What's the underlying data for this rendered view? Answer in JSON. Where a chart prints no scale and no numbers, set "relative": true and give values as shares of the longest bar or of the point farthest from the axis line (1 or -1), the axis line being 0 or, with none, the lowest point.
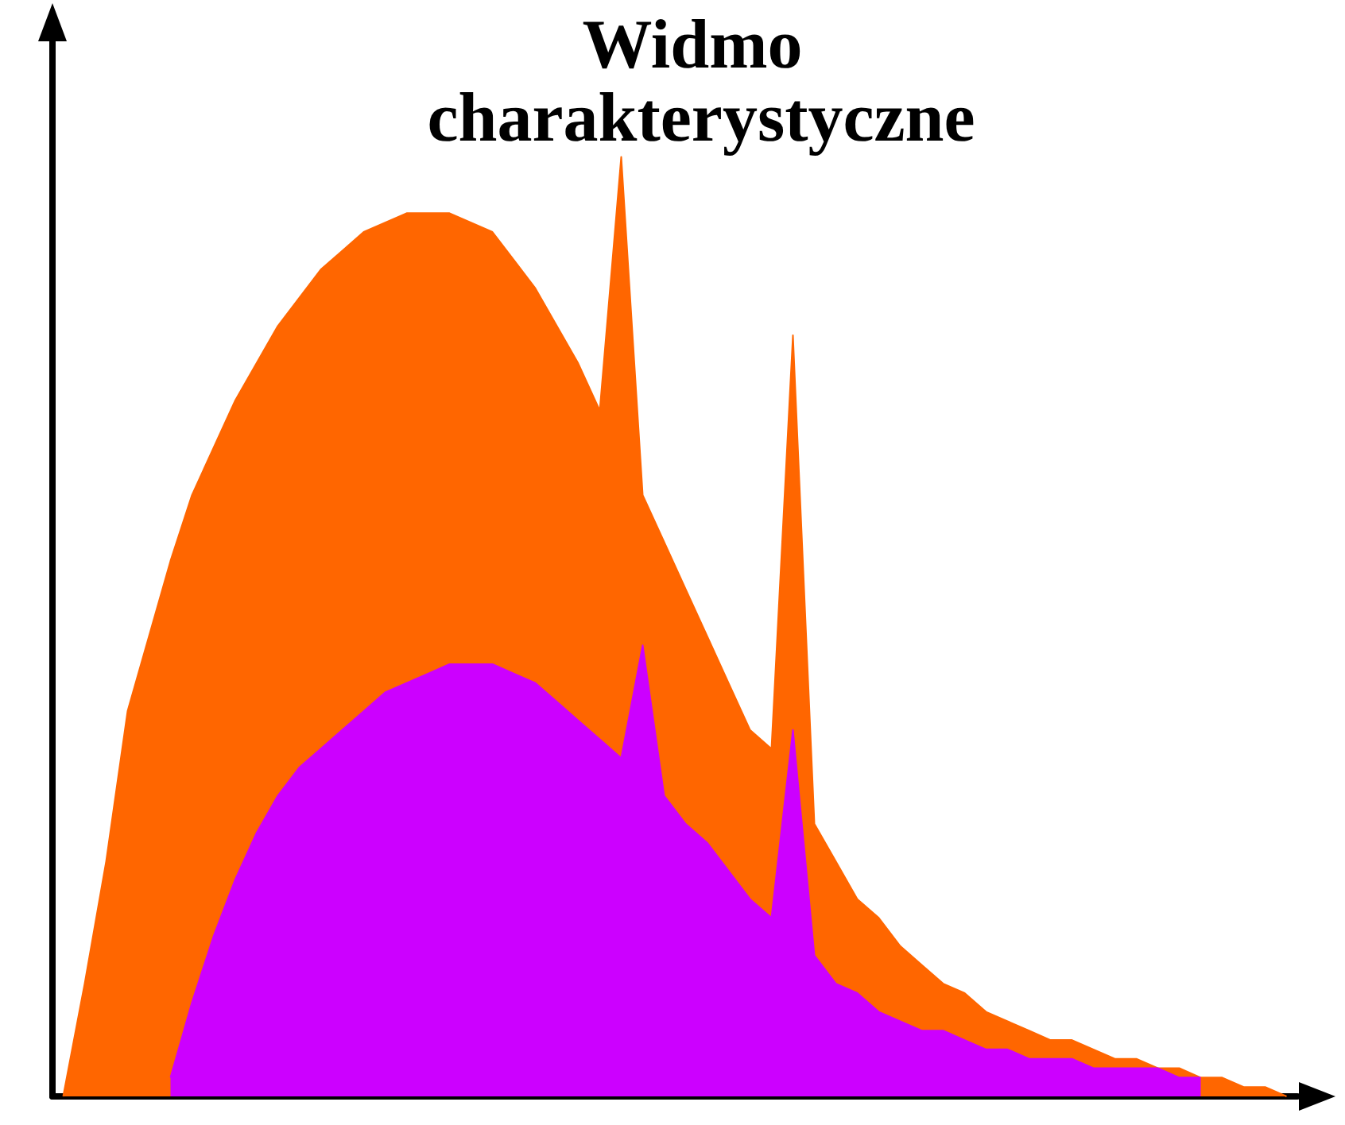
{
  "chart_data": {
    "type": "area",
    "title": "Widmo charakterystyczne",
    "relative": true,
    "grid": false,
    "categories": [
      null,
      null,
      null,
      null,
      null,
      null,
      null,
      null,
      null,
      null,
      null,
      null,
      null,
      null,
      null,
      null,
      null,
      null,
      null,
      null,
      null,
      null,
      null,
      null,
      null,
      null,
      null,
      null,
      null,
      null,
      null,
      null,
      null,
      null,
      null,
      null,
      null,
      null,
      null,
      null,
      null,
      null,
      null,
      null,
      null,
      null,
      null,
      null,
      null,
      null,
      null,
      null,
      null,
      null,
      null,
      null,
      null,
      null
    ],
    "series": [
      {
        "color": "#ff6600",
        "values": [
          0,
          0.12,
          0.25,
          0.41,
          0.49,
          0.57,
          0.64,
          0.69,
          0.74,
          0.78,
          0.82,
          0.85,
          0.88,
          0.9,
          0.92,
          0.93,
          0.94,
          0.94,
          0.94,
          0.93,
          0.92,
          0.89,
          0.86,
          0.82,
          0.78,
          0.73,
          1,
          0.64,
          0.59,
          0.54,
          0.49,
          0.44,
          0.39,
          0.37,
          0.81,
          0.29,
          0.25,
          0.21,
          0.19,
          0.16,
          0.14,
          0.12,
          0.11,
          0.09,
          0.08,
          0.07,
          0.06,
          0.06,
          0.05,
          0.04,
          0.04,
          0.03,
          0.03,
          0.02,
          0.02,
          0.01,
          0.01,
          0
        ]
      },
      {
        "color": "#cc00ff",
        "values": [
          null,
          null,
          null,
          null,
          null,
          0.02,
          0.1,
          0.17,
          0.23,
          0.28,
          0.32,
          0.35,
          0.37,
          0.39,
          0.41,
          0.43,
          0.44,
          0.45,
          0.46,
          0.46,
          0.46,
          0.45,
          0.44,
          0.42,
          0.4,
          0.38,
          0.36,
          0.48,
          0.32,
          0.29,
          0.27,
          0.24,
          0.21,
          0.19,
          0.39,
          0.15,
          0.12,
          0.11,
          0.09,
          0.08,
          0.07,
          0.07,
          0.06,
          0.05,
          0.05,
          0.04,
          0.04,
          0.04,
          0.03,
          0.03,
          0.03,
          0.03,
          0.02,
          0.02,
          null,
          null,
          null,
          null
        ]
      }
    ]
  }
}
